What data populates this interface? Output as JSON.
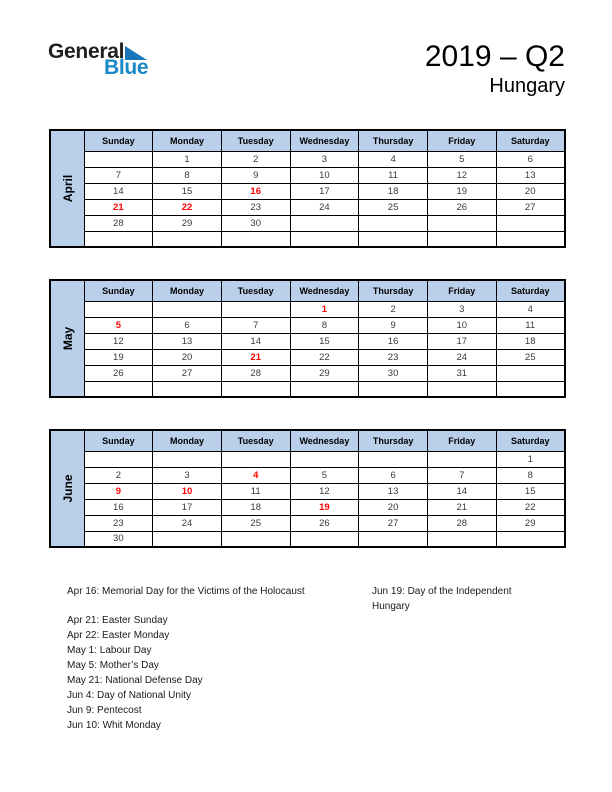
{
  "logo": {
    "general": "General",
    "blue": "Blue"
  },
  "header": {
    "title": "2019 – Q2",
    "subtitle": "Hungary"
  },
  "weekdays": [
    "Sunday",
    "Monday",
    "Tuesday",
    "Wednesday",
    "Thursday",
    "Friday",
    "Saturday"
  ],
  "months": [
    {
      "name": "April",
      "weeks": [
        [
          "",
          "1",
          "2",
          "3",
          "4",
          "5",
          "6"
        ],
        [
          "7",
          "8",
          "9",
          "10",
          "11",
          "12",
          "13"
        ],
        [
          "14",
          "15",
          "16",
          "17",
          "18",
          "19",
          "20"
        ],
        [
          "21",
          "22",
          "23",
          "24",
          "25",
          "26",
          "27"
        ],
        [
          "28",
          "29",
          "30",
          "",
          "",
          "",
          ""
        ],
        [
          "",
          "",
          "",
          "",
          "",
          "",
          ""
        ]
      ],
      "holiday_days": [
        16,
        21,
        22
      ]
    },
    {
      "name": "May",
      "weeks": [
        [
          "",
          "",
          "",
          "1",
          "2",
          "3",
          "4"
        ],
        [
          "5",
          "6",
          "7",
          "8",
          "9",
          "10",
          "11"
        ],
        [
          "12",
          "13",
          "14",
          "15",
          "16",
          "17",
          "18"
        ],
        [
          "19",
          "20",
          "21",
          "22",
          "23",
          "24",
          "25"
        ],
        [
          "26",
          "27",
          "28",
          "29",
          "30",
          "31",
          ""
        ],
        [
          "",
          "",
          "",
          "",
          "",
          "",
          ""
        ]
      ],
      "holiday_days": [
        1,
        5,
        21
      ]
    },
    {
      "name": "June",
      "weeks": [
        [
          "",
          "",
          "",
          "",
          "",
          "",
          "1"
        ],
        [
          "2",
          "3",
          "4",
          "5",
          "6",
          "7",
          "8"
        ],
        [
          "9",
          "10",
          "11",
          "12",
          "13",
          "14",
          "15"
        ],
        [
          "16",
          "17",
          "18",
          "19",
          "20",
          "21",
          "22"
        ],
        [
          "23",
          "24",
          "25",
          "26",
          "27",
          "28",
          "29"
        ],
        [
          "30",
          "",
          "",
          "",
          "",
          "",
          ""
        ]
      ],
      "holiday_days": [
        4,
        9,
        10,
        19
      ]
    }
  ],
  "holidays": {
    "left": [
      "Apr 16: Memorial Day for the Victims of the Holocaust",
      "Apr 21: Easter Sunday",
      "Apr 22: Easter Monday",
      "May 1: Labour Day",
      "May 5: Mother’s Day",
      "May 21: National Defense Day",
      "Jun 4: Day of National Unity",
      "Jun 9: Pentecost",
      "Jun 10: Whit Monday"
    ],
    "right": [
      "Jun 19: Day of the Independent Hungary"
    ]
  },
  "colors": {
    "header_blue": "#b9cfea",
    "holiday_red": "#ff0000",
    "day_text": "#3a3a3a",
    "logo_blue": "#1a87c6",
    "logo_triangle_blue": "#1a75bb",
    "border": "#000000"
  }
}
